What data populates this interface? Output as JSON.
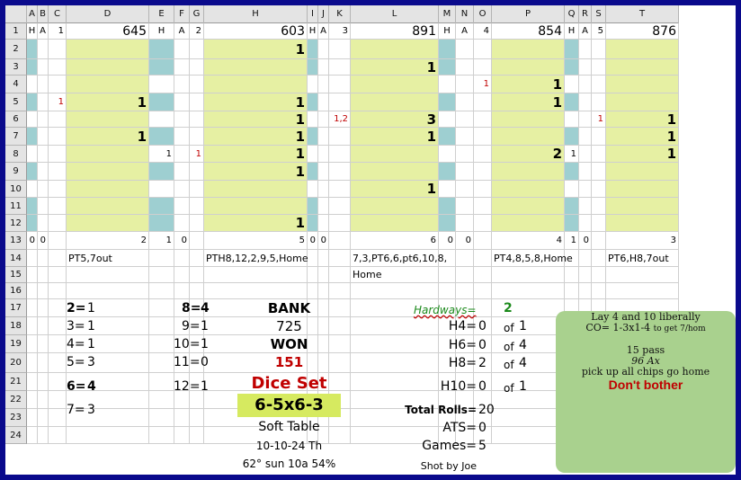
{
  "columns": [
    "A",
    "B",
    "C",
    "D",
    "E",
    "F",
    "G",
    "H",
    "I",
    "J",
    "K",
    "L",
    "M",
    "N",
    "O",
    "P",
    "Q",
    "R",
    "S",
    "T"
  ],
  "rows": [
    "1",
    "2",
    "3",
    "4",
    "5",
    "6",
    "7",
    "8",
    "9",
    "10",
    "11",
    "12",
    "13",
    "14",
    "15",
    "16",
    "17",
    "18",
    "19",
    "20",
    "21",
    "22",
    "23",
    "24"
  ],
  "header_row": {
    "h": "H",
    "a": "A",
    "shooter_numbers": [
      "1",
      "2",
      "3",
      "4",
      "5"
    ],
    "totals": [
      "645",
      "603",
      "891",
      "854",
      "876"
    ]
  },
  "game1": {
    "D5": "1",
    "D7": "1",
    "E8": "1",
    "C5": "1"
  },
  "game2": {
    "G8": "1",
    "H2": "1",
    "H5": "1",
    "H6": "1",
    "H7": "1",
    "H8": "1",
    "H9": "1",
    "H12": "1"
  },
  "game3": {
    "K6": "1,2",
    "L3": "1",
    "L6": "3",
    "L7": "1",
    "L10": "1"
  },
  "game4": {
    "O4": "1",
    "P4": "1",
    "P5": "1",
    "P8": "2",
    "Q8": "1"
  },
  "game5": {
    "S6": "1",
    "T6": "1",
    "T7": "1",
    "T8": "1"
  },
  "row13": {
    "A": "0",
    "B": "0",
    "D": "2",
    "E": "1",
    "F": "0",
    "H": "5",
    "I": "0",
    "J": "0",
    "L": "6",
    "M": "0",
    "N": "0",
    "P": "4",
    "Q": "1",
    "R": "0",
    "T": "3"
  },
  "row14": {
    "D": "PT5,7out",
    "H": "PTH8,12,2,9,5,Home",
    "L": "7,3,PT6,6,pt6,10,8,",
    "P": "PT4,8,5,8,Home",
    "T": "PT6,H8,7out"
  },
  "row15": {
    "L": "Home"
  },
  "counts_left": [
    {
      "label": "2=",
      "value": "1"
    },
    {
      "label": "3=",
      "value": "1"
    },
    {
      "label": "4=",
      "value": "1"
    },
    {
      "label": "5=",
      "value": "3"
    },
    {
      "label": "6=",
      "value": "4"
    },
    {
      "label": "7=",
      "value": "3"
    }
  ],
  "counts_right": [
    {
      "label": "8=",
      "value": "4"
    },
    {
      "label": "9=",
      "value": "1"
    },
    {
      "label": "10=",
      "value": "1"
    },
    {
      "label": "11=",
      "value": "0"
    },
    {
      "label": "12=",
      "value": "1"
    }
  ],
  "bank": {
    "label": "BANK",
    "value": "725",
    "won_label": "WON",
    "won_value": "151"
  },
  "dice": {
    "label": "Dice Set",
    "value": "6-5x6-3",
    "table": "Soft Table",
    "date": "10-10-24 Th",
    "weather": "62° sun 10a 54%"
  },
  "hardways": {
    "label": "Hardways=",
    "value": "2",
    "items": [
      {
        "label": "H4=",
        "value": "0",
        "of": "of",
        "total": "1"
      },
      {
        "label": "H6=",
        "value": "0",
        "of": "of",
        "total": "4"
      },
      {
        "label": "H8=",
        "value": "2",
        "of": "of",
        "total": "4"
      },
      {
        "label": "H10=",
        "value": "0",
        "of": "of",
        "total": "1"
      }
    ]
  },
  "stats": {
    "total_rolls_label": "Total Rolls=",
    "total_rolls": "20",
    "ats_label": "ATS=",
    "ats": "0",
    "games_label": "Games=",
    "games": "5",
    "shot_by": "Shot by Joe"
  },
  "note": {
    "line1": "Lay 4 and 10 liberally",
    "line2a": "CO= 1-3x1-4",
    "line2b": "to get 7/hom",
    "line3": "15 pass",
    "line4": "96 Ax",
    "line5": "pick up all chips go home",
    "line6": "Don't bother"
  },
  "colors": {
    "teal": "#9ecfd1",
    "yellow": "#e6f0a3",
    "note_green": "#a9d18e",
    "border": "#0a0a8c",
    "accent_red": "#c00000"
  }
}
